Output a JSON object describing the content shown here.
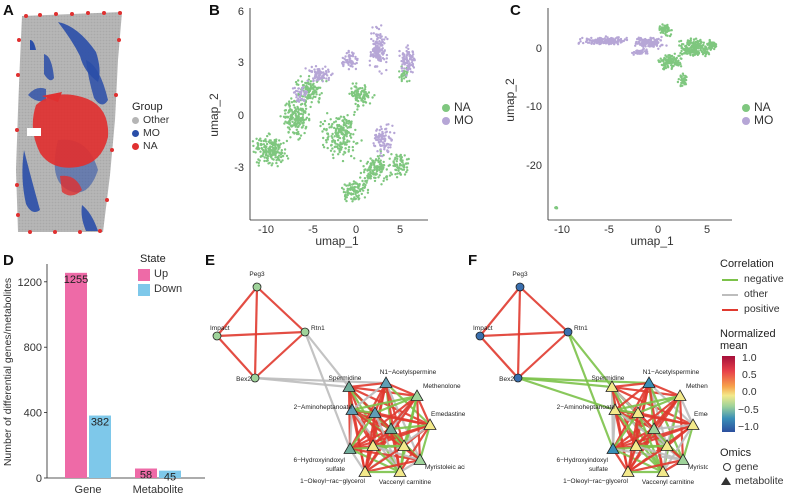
{
  "panels": {
    "A": {
      "label": "A",
      "legend_title": "Group",
      "groups": [
        {
          "name": "Other",
          "color": "#b5b5b5"
        },
        {
          "name": "MO",
          "color": "#2a4ea8"
        },
        {
          "name": "NA",
          "color": "#e03030"
        }
      ]
    },
    "B": {
      "label": "B",
      "xlabel": "umap_1",
      "ylabel": "umap_2",
      "xticks": [
        "-10",
        "-5",
        "0",
        "5"
      ],
      "yticks": [
        "6",
        "3",
        "0",
        "-3"
      ],
      "legend": [
        {
          "name": "NA",
          "color": "#7fc77f"
        },
        {
          "name": "MO",
          "color": "#b6a6d6"
        }
      ]
    },
    "C": {
      "label": "C",
      "xlabel": "umap_1",
      "ylabel": "umap_2",
      "xticks": [
        "-10",
        "-5",
        "0",
        "5"
      ],
      "yticks": [
        "0",
        "-10",
        "-20"
      ],
      "legend": [
        {
          "name": "NA",
          "color": "#7fc77f"
        },
        {
          "name": "MO",
          "color": "#b6a6d6"
        }
      ]
    },
    "D": {
      "label": "D",
      "ylabel": "Number of differential genes/metabolites",
      "legend_title": "State"
    },
    "E": {
      "label": "E"
    },
    "F": {
      "label": "F"
    }
  },
  "chart_data": {
    "type": "bar",
    "categories": [
      "Gene",
      "Metabolite"
    ],
    "series": [
      {
        "name": "Up",
        "color": "#ee6aa7",
        "values": [
          1255,
          58
        ]
      },
      {
        "name": "Down",
        "color": "#7ec8ea",
        "values": [
          382,
          45
        ]
      }
    ],
    "ylabel": "Number of differential genes/metabolites",
    "ylim": [
      0,
      1260
    ],
    "yticks": [
      "0",
      "400",
      "800",
      "1200"
    ],
    "data_labels": [
      "1255",
      "382",
      "58",
      "45"
    ]
  },
  "network": {
    "nodes": [
      {
        "id": "Peg3",
        "type": "gene"
      },
      {
        "id": "Impact",
        "type": "gene"
      },
      {
        "id": "Rtn1",
        "type": "gene"
      },
      {
        "id": "Bex2",
        "type": "gene"
      },
      {
        "id": "Spermidine",
        "type": "metabolite"
      },
      {
        "id": "N1−Acetylspermine",
        "type": "metabolite"
      },
      {
        "id": "Methenolone",
        "type": "metabolite"
      },
      {
        "id": "2−Aminoheptanoate",
        "type": "metabolite"
      },
      {
        "id": "Emedastine",
        "type": "metabolite"
      },
      {
        "id": "6−Hydroxyindoxyl sulfate",
        "type": "metabolite"
      },
      {
        "id": "Myristoleic acid",
        "type": "metabolite"
      },
      {
        "id": "1−Oleoyl−rac−glycerol",
        "type": "metabolite"
      },
      {
        "id": "Vaccenyl carnitine",
        "type": "metabolite"
      }
    ],
    "labels": {
      "peg3": "Peg3",
      "impact": "Impact",
      "rtn1": "Rtn1",
      "bex2": "Bex2",
      "spermidine": "Spermidine",
      "n1": "N1−Acetylspermine",
      "methenolone": "Methenolone",
      "amino": "2−Aminoheptanoate",
      "emedastine": "Emedastine",
      "hydroxy1": "6−Hydroxyindoxyl",
      "hydroxy2": "sulfate",
      "myristoleic": "Myristoleic acid",
      "oleoyl": "1−Oleoyl−rac−glycerol",
      "vaccenyl": "Vaccenyl carnitine"
    },
    "correlation_legend": {
      "title": "Correlation",
      "items": [
        {
          "name": "negative",
          "color": "#7cc24a"
        },
        {
          "name": "other",
          "color": "#bdbdbd"
        },
        {
          "name": "positive",
          "color": "#e03a2f"
        }
      ]
    },
    "normalized_legend": {
      "title_line1": "Normalized",
      "title_line2": "mean",
      "ticks": [
        "1.0",
        "0.5",
        "0.0",
        "−0.5",
        "−1.0"
      ],
      "colors": [
        "#a50f3a",
        "#e8414a",
        "#f7a24b",
        "#f3e98a",
        "#9fd39a",
        "#3a8fb7",
        "#2c4f9e"
      ]
    },
    "omics_legend": {
      "title": "Omics",
      "items": [
        "gene",
        "metabolite"
      ]
    }
  }
}
